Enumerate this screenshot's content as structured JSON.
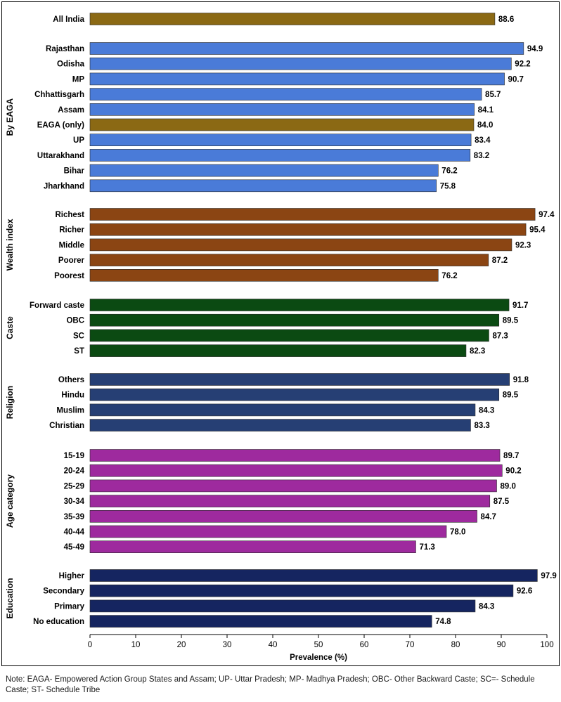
{
  "chart_data": {
    "type": "bar",
    "orientation": "horizontal",
    "xlabel": "Prevalence (%)",
    "xlim": [
      0,
      100
    ],
    "xticks": [
      0,
      10,
      20,
      30,
      40,
      50,
      60,
      70,
      80,
      90,
      100
    ],
    "groups": [
      {
        "name": "",
        "color": "#8B6914",
        "bars": [
          {
            "label": "All India",
            "value": 88.6,
            "value_label": "88.6"
          }
        ]
      },
      {
        "name": "By EAGA",
        "color": "#4A7BD8",
        "bars": [
          {
            "label": "Rajasthan",
            "value": 94.9,
            "value_label": "94.9"
          },
          {
            "label": "Odisha",
            "value": 92.2,
            "value_label": "92.2"
          },
          {
            "label": "MP",
            "value": 90.7,
            "value_label": "90.7"
          },
          {
            "label": "Chhattisgarh",
            "value": 85.7,
            "value_label": "85.7"
          },
          {
            "label": "Assam",
            "value": 84.1,
            "value_label": "84.1"
          },
          {
            "label": "EAGA (only)",
            "value": 84.0,
            "value_label": "84.0",
            "color": "#8B6914"
          },
          {
            "label": "UP",
            "value": 83.4,
            "value_label": "83.4"
          },
          {
            "label": "Uttarakhand",
            "value": 83.2,
            "value_label": "83.2"
          },
          {
            "label": "Bihar",
            "value": 76.2,
            "value_label": "76.2"
          },
          {
            "label": "Jharkhand",
            "value": 75.8,
            "value_label": "75.8"
          }
        ]
      },
      {
        "name": "Wealth index",
        "color": "#8B4513",
        "bars": [
          {
            "label": "Richest",
            "value": 97.4,
            "value_label": "97.4"
          },
          {
            "label": "Richer",
            "value": 95.4,
            "value_label": "95.4"
          },
          {
            "label": "Middle",
            "value": 92.3,
            "value_label": "92.3"
          },
          {
            "label": "Poorer",
            "value": 87.2,
            "value_label": "87.2"
          },
          {
            "label": "Poorest",
            "value": 76.2,
            "value_label": "76.2"
          }
        ]
      },
      {
        "name": "Caste",
        "color": "#0B4A12",
        "bars": [
          {
            "label": "Forward caste",
            "value": 91.7,
            "value_label": "91.7"
          },
          {
            "label": "OBC",
            "value": 89.5,
            "value_label": "89.5"
          },
          {
            "label": "SC",
            "value": 87.3,
            "value_label": "87.3"
          },
          {
            "label": "ST",
            "value": 82.3,
            "value_label": "82.3"
          }
        ]
      },
      {
        "name": "Religion",
        "color": "#263F74",
        "bars": [
          {
            "label": "Others",
            "value": 91.8,
            "value_label": "91.8"
          },
          {
            "label": "Hindu",
            "value": 89.5,
            "value_label": "89.5"
          },
          {
            "label": "Muslim",
            "value": 84.3,
            "value_label": "84.3"
          },
          {
            "label": "Christian",
            "value": 83.3,
            "value_label": "83.3"
          }
        ]
      },
      {
        "name": "Age category",
        "color": "#9E2A9E",
        "bars": [
          {
            "label": "15-19",
            "value": 89.7,
            "value_label": "89.7"
          },
          {
            "label": "20-24",
            "value": 90.2,
            "value_label": "90.2"
          },
          {
            "label": "25-29",
            "value": 89.0,
            "value_label": "89.0"
          },
          {
            "label": "30-34",
            "value": 87.5,
            "value_label": "87.5"
          },
          {
            "label": "35-39",
            "value": 84.7,
            "value_label": "84.7"
          },
          {
            "label": "40-44",
            "value": 78.0,
            "value_label": "78.0"
          },
          {
            "label": "45-49",
            "value": 71.3,
            "value_label": "71.3"
          }
        ]
      },
      {
        "name": "Education",
        "color": "#152560",
        "bars": [
          {
            "label": "Higher",
            "value": 97.9,
            "value_label": "97.9"
          },
          {
            "label": "Secondary",
            "value": 92.6,
            "value_label": "92.6"
          },
          {
            "label": "Primary",
            "value": 84.3,
            "value_label": "84.3"
          },
          {
            "label": "No education",
            "value": 74.8,
            "value_label": "74.8"
          }
        ]
      }
    ]
  },
  "note": "Note: EAGA- Empowered Action Group States and Assam; UP- Uttar Pradesh; MP- Madhya Pradesh; OBC- Other Backward Caste; SC=- Schedule Caste; ST- Schedule Tribe"
}
